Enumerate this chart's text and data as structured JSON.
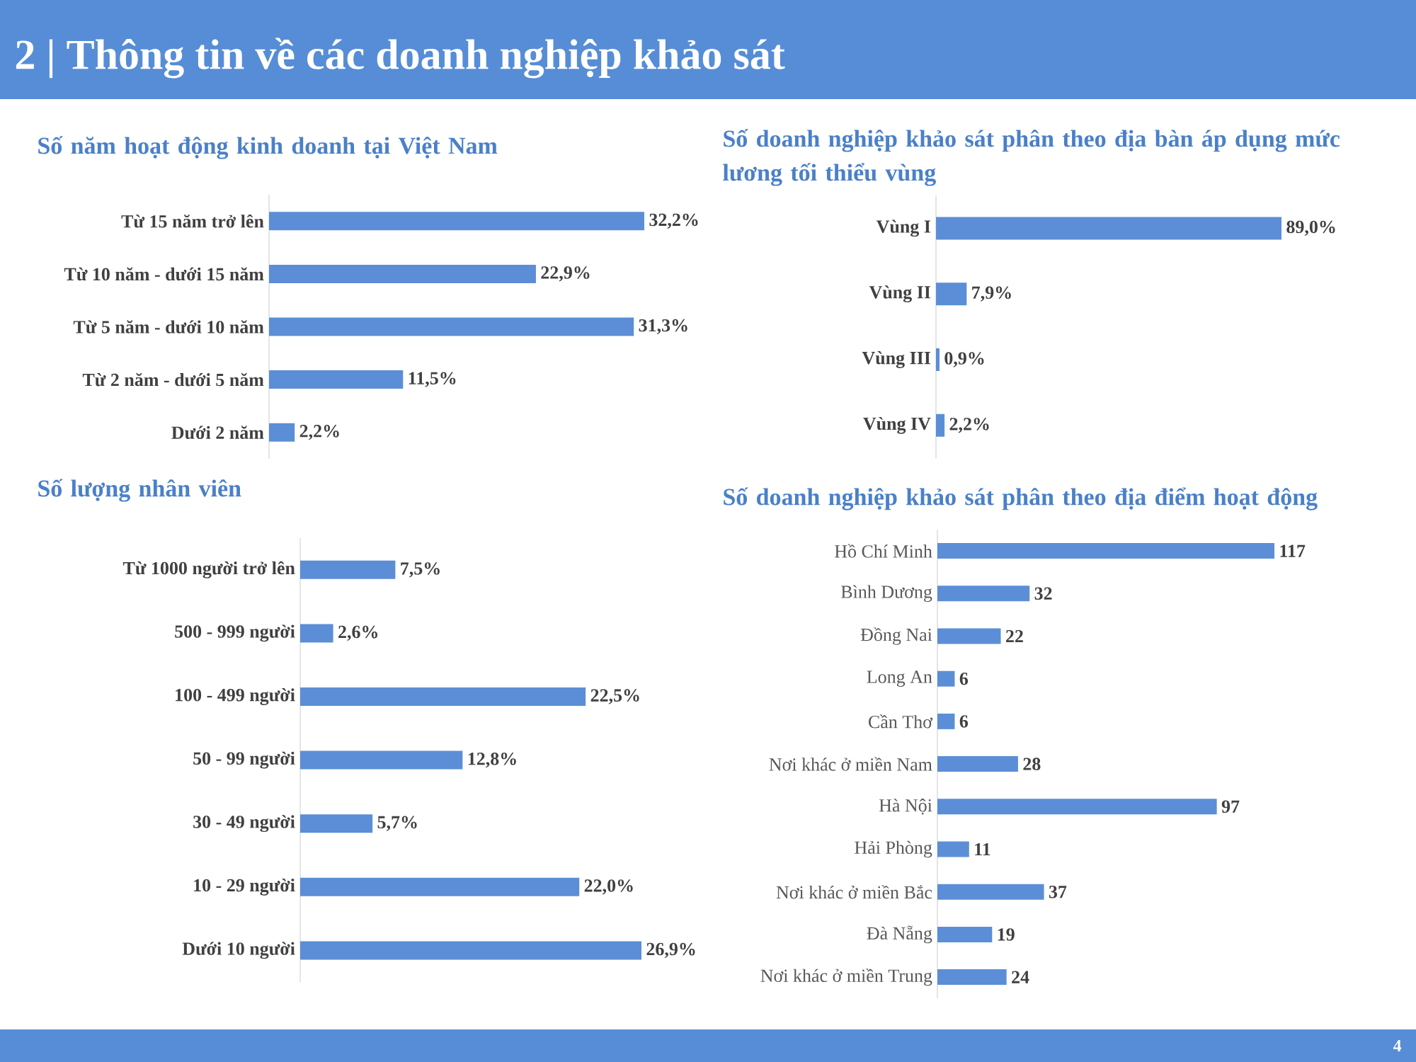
{
  "chart_data": [
    {
      "type": "other",
      "title": "2 | Thông tin về các doanh nghiệp khảo sát",
      "annotations": [
        "4"
      ]
    },
    {
      "type": "bar",
      "orientation": "horizontal",
      "title": "Số năm hoạt động kinh doanh tại Việt Nam",
      "categories": [
        "Từ 15 năm trở lên",
        "Từ 10 năm - dưới 15 năm",
        "Từ 5 năm - dưới 10 năm",
        "Từ 2 năm - dưới 5 năm",
        "Dưới 2 năm"
      ],
      "values": [
        32.2,
        22.9,
        31.3,
        11.5,
        2.2
      ],
      "value_labels": [
        "32,2%",
        "22,9%",
        "31,3%",
        "11,5%",
        "2,2%"
      ],
      "color": "#5b8ed6"
    },
    {
      "type": "bar",
      "orientation": "horizontal",
      "title": "Số doanh nghiệp khảo sát phân theo địa bàn áp dụng mức lương tối thiểu vùng",
      "categories": [
        "Vùng I",
        "Vùng II",
        "Vùng III",
        "Vùng IV"
      ],
      "values": [
        89.0,
        7.9,
        0.9,
        2.2
      ],
      "value_labels": [
        "89,0%",
        "7,9%",
        "0,9%",
        "2,2%"
      ],
      "color": "#5b8ed6"
    },
    {
      "type": "bar",
      "orientation": "horizontal",
      "title": "Số lượng nhân viên",
      "categories": [
        "Từ 1000 người trở lên",
        "500 - 999 người",
        "100 - 499 người",
        "50 - 99 người",
        "30 - 49 người",
        "10 - 29 người",
        "Dưới 10 người"
      ],
      "values": [
        7.5,
        2.6,
        22.5,
        12.8,
        5.7,
        22.0,
        26.9
      ],
      "value_labels": [
        "7,5%",
        "2,6%",
        "22,5%",
        "12,8%",
        "5,7%",
        "22,0%",
        "26,9%"
      ],
      "color": "#5b8ed6"
    },
    {
      "type": "bar",
      "orientation": "horizontal",
      "title": "Số doanh nghiệp khảo sát phân theo địa điểm hoạt động",
      "categories": [
        "Hồ Chí Minh",
        "Bình Dương",
        "Đồng Nai",
        "Long An",
        "Cần Thơ",
        "Nơi khác ở miền Nam",
        "Hà Nội",
        "Hải Phòng",
        "Nơi khác ở miền Bắc",
        "Đà Nẵng",
        "Nơi khác ở miền Trung"
      ],
      "values": [
        117,
        32,
        22,
        6,
        6,
        28,
        97,
        11,
        37,
        19,
        24
      ],
      "data_labels": true,
      "color": "#5b8ed6"
    }
  ]
}
